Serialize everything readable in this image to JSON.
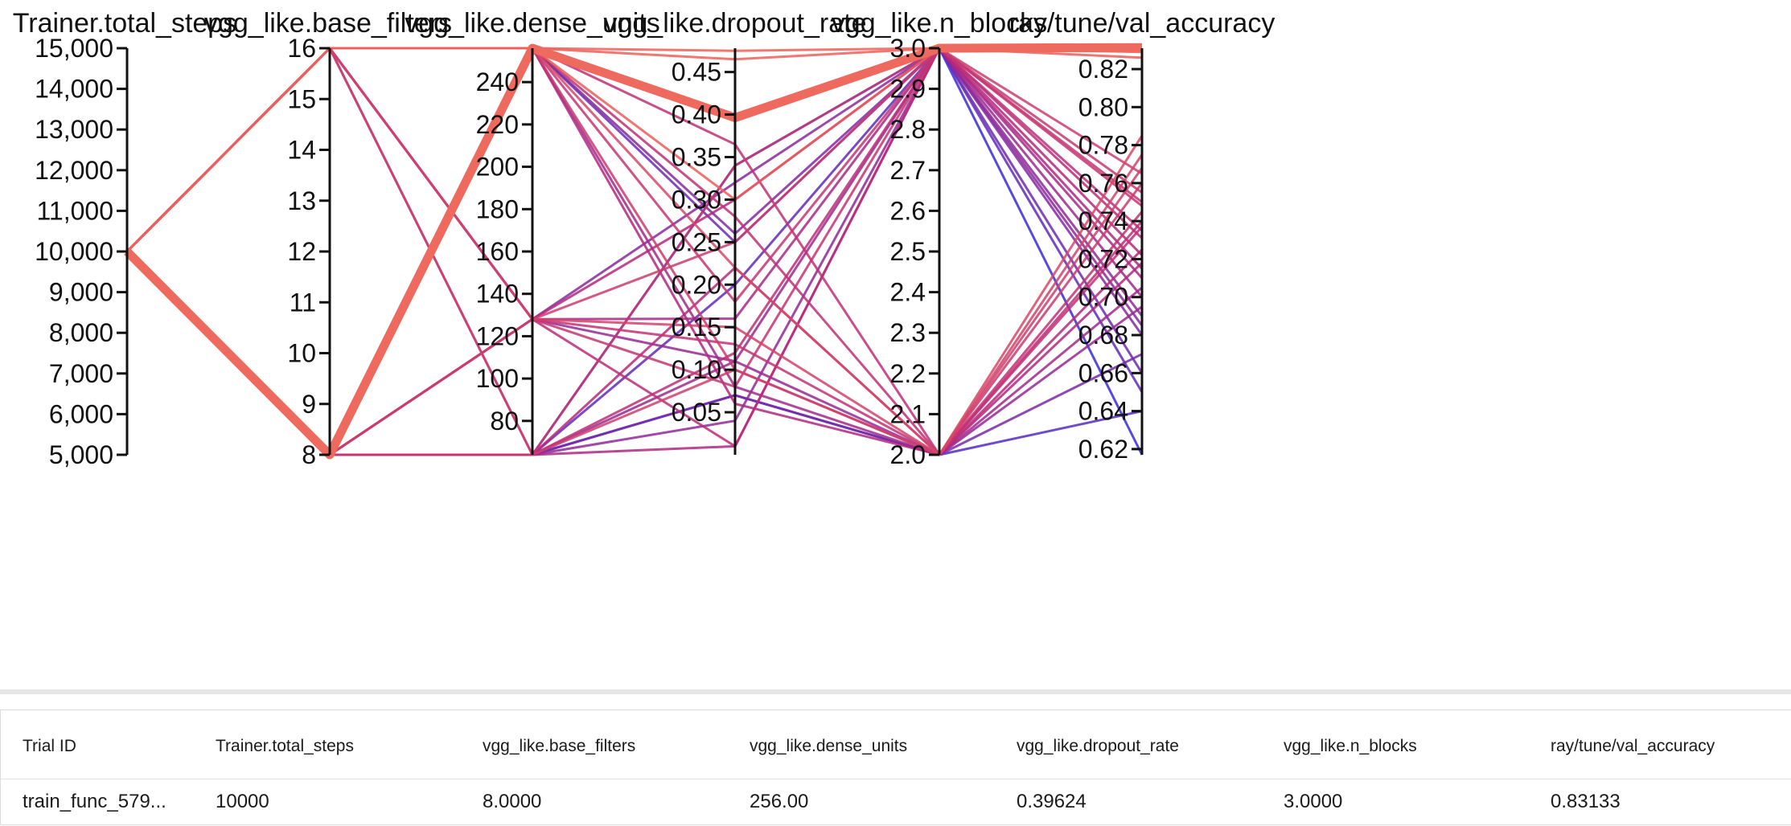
{
  "chart_data": {
    "type": "parallel-coordinates",
    "axes": [
      {
        "name": "Trainer.total_steps",
        "range": [
          5000,
          15000
        ],
        "ticks": [
          5000,
          6000,
          7000,
          8000,
          9000,
          10000,
          11000,
          12000,
          13000,
          14000,
          15000
        ],
        "tick_labels": [
          "5,000",
          "6,000",
          "7,000",
          "8,000",
          "9,000",
          "10,000",
          "11,000",
          "12,000",
          "13,000",
          "14,000",
          "15,000"
        ]
      },
      {
        "name": "vgg_like.base_filters",
        "range": [
          8,
          16
        ],
        "ticks": [
          8,
          9,
          10,
          11,
          12,
          13,
          14,
          15,
          16
        ],
        "tick_labels": [
          "8",
          "9",
          "10",
          "11",
          "12",
          "13",
          "14",
          "15",
          "16"
        ]
      },
      {
        "name": "vgg_like.dense_units",
        "range": [
          64,
          256
        ],
        "ticks": [
          80,
          100,
          120,
          140,
          160,
          180,
          200,
          220,
          240
        ],
        "tick_labels": [
          "80",
          "100",
          "120",
          "140",
          "160",
          "180",
          "200",
          "220",
          "240"
        ]
      },
      {
        "name": "vgg_like.dropout_rate",
        "range": [
          0.0,
          0.478
        ],
        "ticks": [
          0.05,
          0.1,
          0.15,
          0.2,
          0.25,
          0.3,
          0.35,
          0.4,
          0.45
        ],
        "tick_labels": [
          "0.05",
          "0.10",
          "0.15",
          "0.20",
          "0.25",
          "0.30",
          "0.35",
          "0.40",
          "0.45"
        ]
      },
      {
        "name": "vgg_like.n_blocks",
        "range": [
          2,
          3
        ],
        "ticks": [
          2.0,
          2.1,
          2.2,
          2.3,
          2.4,
          2.5,
          2.6,
          2.7,
          2.8,
          2.9,
          3.0
        ],
        "tick_labels": [
          "2.0",
          "2.1",
          "2.2",
          "2.3",
          "2.4",
          "2.5",
          "2.6",
          "2.7",
          "2.8",
          "2.9",
          "3.0"
        ]
      },
      {
        "name": "ray/tune/val_accuracy",
        "range": [
          0.617,
          0.831
        ],
        "ticks": [
          0.62,
          0.64,
          0.66,
          0.68,
          0.7,
          0.72,
          0.74,
          0.76,
          0.78,
          0.8,
          0.82
        ],
        "tick_labels": [
          "0.62",
          "0.64",
          "0.66",
          "0.68",
          "0.70",
          "0.72",
          "0.74",
          "0.76",
          "0.78",
          "0.80",
          "0.82"
        ]
      }
    ],
    "color_scale": {
      "low": "#3a2bd8",
      "mid": "#b8287a",
      "high": "#ef6058"
    },
    "highlight_color": "#ef6a5e",
    "trials": [
      [
        10000,
        8,
        256,
        0.39624,
        3,
        0.83133
      ],
      [
        10000,
        16,
        256,
        0.475,
        3,
        0.831
      ],
      [
        10000,
        16,
        256,
        0.465,
        3,
        0.829
      ],
      [
        10000,
        8,
        256,
        0.3,
        3,
        0.826
      ],
      [
        10000,
        8,
        256,
        0.22,
        2,
        0.785
      ],
      [
        10000,
        16,
        128,
        0.15,
        2,
        0.775
      ],
      [
        10000,
        16,
        64,
        0.1,
        2,
        0.768
      ],
      [
        10000,
        8,
        128,
        0.25,
        3,
        0.765
      ],
      [
        10000,
        16,
        256,
        0.1,
        2,
        0.76
      ],
      [
        10000,
        8,
        64,
        0.34,
        3,
        0.755
      ],
      [
        10000,
        16,
        256,
        0.18,
        3,
        0.75
      ],
      [
        10000,
        8,
        128,
        0.08,
        3,
        0.748
      ],
      [
        10000,
        16,
        128,
        0.13,
        2,
        0.745
      ],
      [
        10000,
        8,
        256,
        0.28,
        2,
        0.74
      ],
      [
        10000,
        16,
        256,
        0.365,
        2,
        0.737
      ],
      [
        10000,
        8,
        64,
        0.12,
        3,
        0.735
      ],
      [
        10000,
        16,
        128,
        0.01,
        3,
        0.731
      ],
      [
        10000,
        8,
        64,
        0.22,
        2,
        0.725
      ],
      [
        10000,
        8,
        128,
        0.3,
        3,
        0.722
      ],
      [
        10000,
        16,
        256,
        0.06,
        2,
        0.718
      ],
      [
        10000,
        8,
        64,
        0.01,
        3,
        0.715
      ],
      [
        10000,
        16,
        128,
        0.16,
        3,
        0.71
      ],
      [
        10000,
        8,
        256,
        0.08,
        2,
        0.705
      ],
      [
        10000,
        16,
        64,
        0.11,
        3,
        0.7
      ],
      [
        10000,
        8,
        128,
        0.11,
        2,
        0.695
      ],
      [
        10000,
        8,
        64,
        0.04,
        3,
        0.69
      ],
      [
        10000,
        16,
        128,
        0.32,
        3,
        0.685
      ],
      [
        10000,
        8,
        256,
        0.26,
        3,
        0.68
      ],
      [
        10000,
        8,
        64,
        0.07,
        2,
        0.67
      ],
      [
        10000,
        16,
        256,
        0.25,
        3,
        0.66
      ],
      [
        10000,
        8,
        64,
        0.2,
        3,
        0.65
      ],
      [
        10000,
        8,
        64,
        0.07,
        2,
        0.64
      ],
      [
        10000,
        8,
        64,
        0.34,
        3,
        0.617
      ]
    ]
  },
  "table": {
    "headers": [
      "Trial ID",
      "Trainer.total_steps",
      "vgg_like.base_filters",
      "vgg_like.dense_units",
      "vgg_like.dropout_rate",
      "vgg_like.n_blocks",
      "ray/tune/val_accuracy"
    ],
    "rows": [
      [
        "train_func_579...",
        "10000",
        "8.0000",
        "256.00",
        "0.39624",
        "3.0000",
        "0.83133"
      ]
    ]
  }
}
